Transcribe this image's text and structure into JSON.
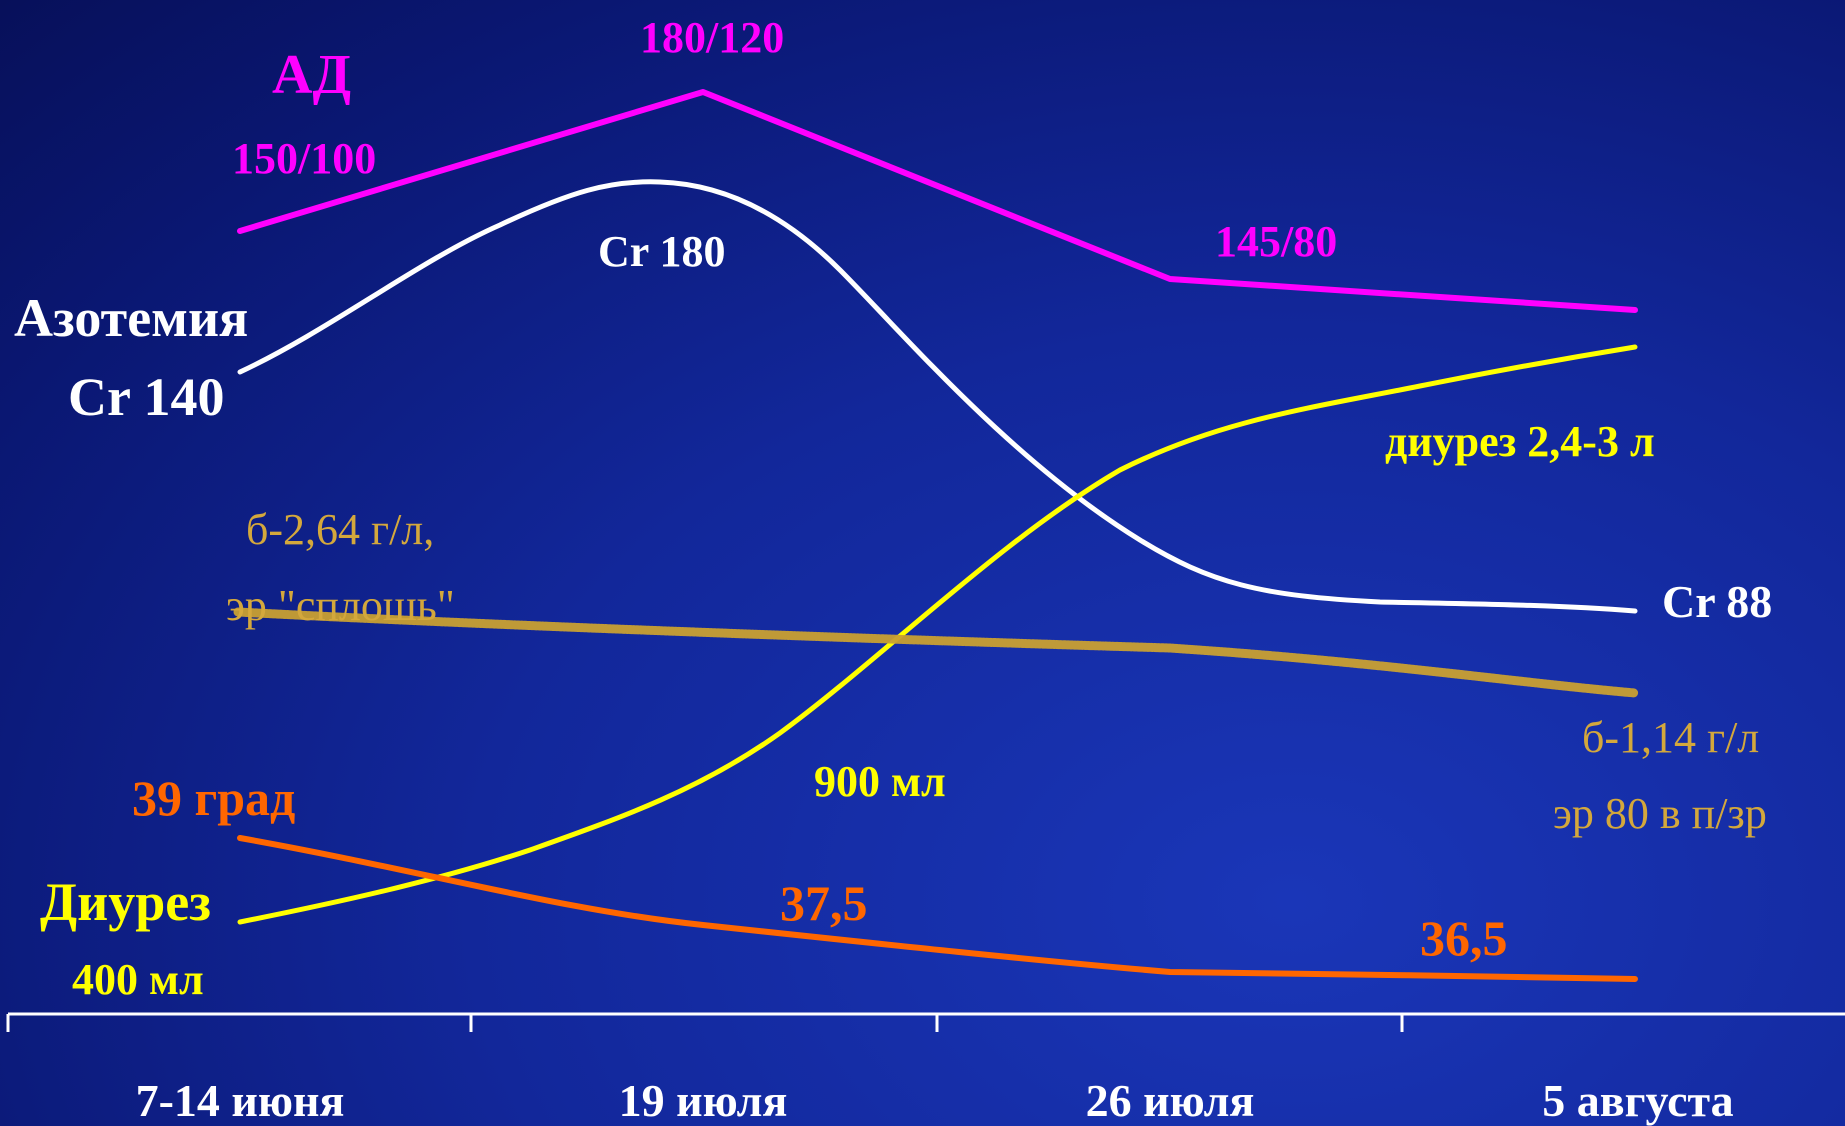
{
  "colors": {
    "background": "#0f2290",
    "bp": "#ff00ff",
    "creatinine": "#ffffff",
    "diuresis": "#ffff00",
    "proteinuria": "#c9a032",
    "temperature": "#ff6600",
    "axis": "#ffffff"
  },
  "chart_data": {
    "type": "line",
    "categories": [
      "7-14 июня",
      "19 июля",
      "26 июля",
      "5 августа"
    ],
    "x_label_gap": "",
    "grid": false,
    "legend": "none",
    "series": [
      {
        "name": "АД",
        "values": [
          {
            "x": 0,
            "y": "150/100"
          },
          {
            "x": 1,
            "y": "180/120"
          },
          {
            "x": 2,
            "y": "145/80"
          },
          {
            "x": 3,
            "y": ""
          }
        ]
      },
      {
        "name": "Азотемия",
        "values": [
          {
            "x": 0,
            "y": 140
          },
          {
            "x": 1,
            "y": 180
          },
          {
            "x": 2,
            "y": ""
          },
          {
            "x": 3,
            "y": 88
          }
        ]
      },
      {
        "name": "Диурез",
        "values": [
          {
            "x": 0,
            "y": "400 мл"
          },
          {
            "x": 1.45,
            "y": "900 мл"
          },
          {
            "x": 3,
            "y": "2,4-3 л"
          }
        ]
      },
      {
        "name": "",
        "values": [
          {
            "x": 0,
            "y": "б-2,64 г/л, эр \"сплошь\""
          },
          {
            "x": 3,
            "y": "б-1,14 г/л эр 80 в п/зр"
          }
        ]
      },
      {
        "name": "",
        "values": [
          {
            "x": 0,
            "y": 39
          },
          {
            "x": 1,
            "y": 37.5
          },
          {
            "x": 3,
            "y": 36.5
          }
        ]
      }
    ]
  },
  "labels": {
    "bp_title": "АД",
    "bp_start": "150/100",
    "bp_peak": "180/120",
    "bp_mid": "145/80",
    "azot_title": "Азотемия",
    "cr_start": "Cr 140",
    "cr_peak": "Cr 180",
    "cr_end": "Cr 88",
    "diur_title": "Диурез",
    "diur_start": "400 мл",
    "diur_mid": "900 мл",
    "diur_end": "диурез 2,4-3 л",
    "prot_start_1": "б-2,64 г/л,",
    "prot_start_2": "эр \"сплошь\"",
    "prot_end_1": "б-1,14 г/л",
    "prot_end_2": "эр 80 в п/зр",
    "temp_start": "39 град",
    "temp_mid": "37,5",
    "temp_end": "36,5"
  }
}
